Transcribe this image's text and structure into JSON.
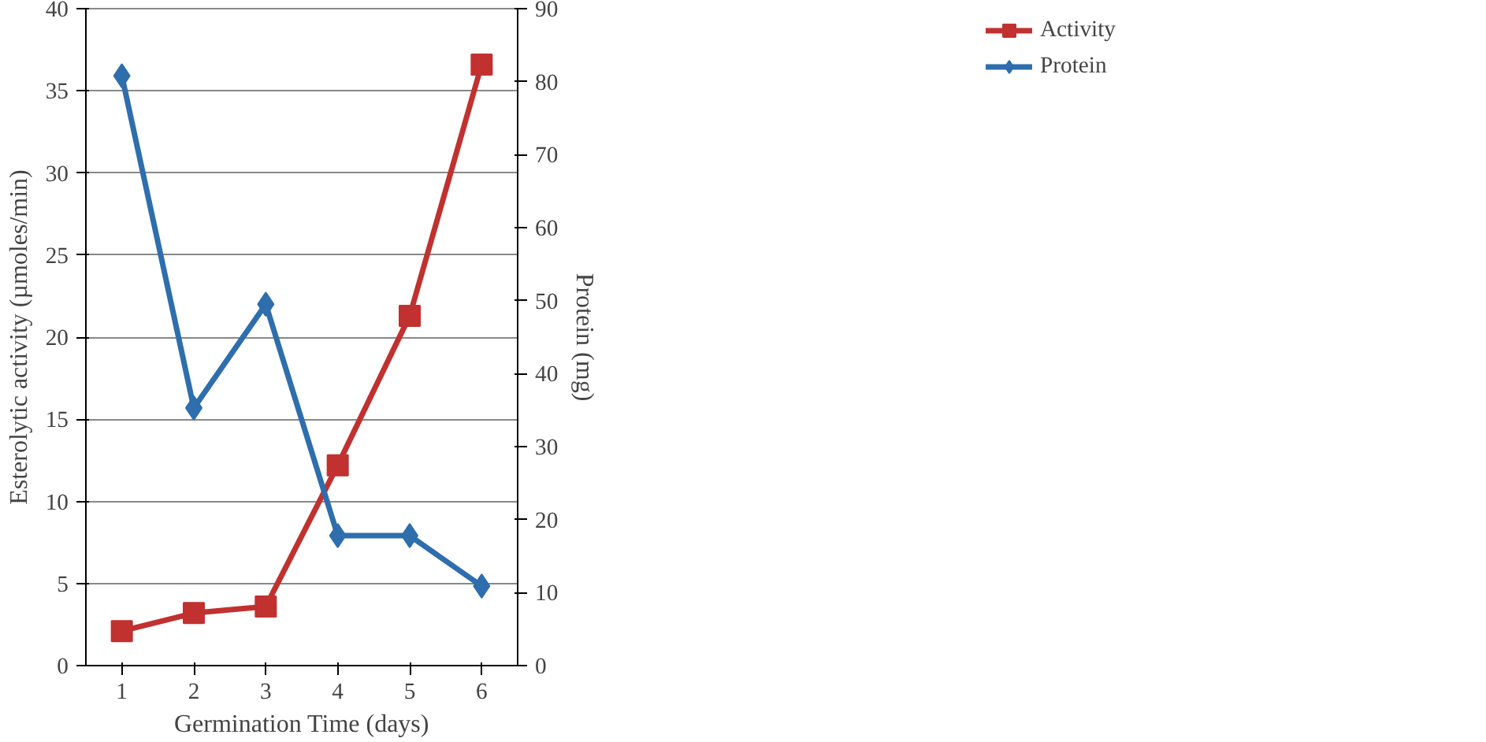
{
  "chart_data": {
    "type": "line",
    "xlabel": "Germination Time (days)",
    "ylabel": "Esterolytic activity (µmoles/min)",
    "y2label": "Protein (mg)",
    "x": [
      1,
      2,
      3,
      4,
      5,
      6
    ],
    "xlim": [
      0.5,
      6.5
    ],
    "xticks": [
      1,
      2,
      3,
      4,
      5,
      6
    ],
    "ylim": [
      0,
      40
    ],
    "yticks": [
      0,
      5,
      10,
      15,
      20,
      25,
      30,
      35,
      40
    ],
    "y2lim": [
      0,
      90
    ],
    "y2ticks": [
      0,
      10,
      20,
      30,
      40,
      50,
      60,
      70,
      80,
      90
    ],
    "grid": "y",
    "legend": "right",
    "series": [
      {
        "name": "Activity",
        "color": "#c0312f",
        "marker": "square",
        "values": [
          2.1,
          3.2,
          3.6,
          12.2,
          21.3,
          36.6
        ]
      },
      {
        "name": "Protein",
        "color": "#2e6ead",
        "marker": "diamond",
        "axis": "y2",
        "values": [
          80.8,
          35.3,
          49.5,
          17.8,
          17.8,
          10.9
        ]
      }
    ]
  }
}
